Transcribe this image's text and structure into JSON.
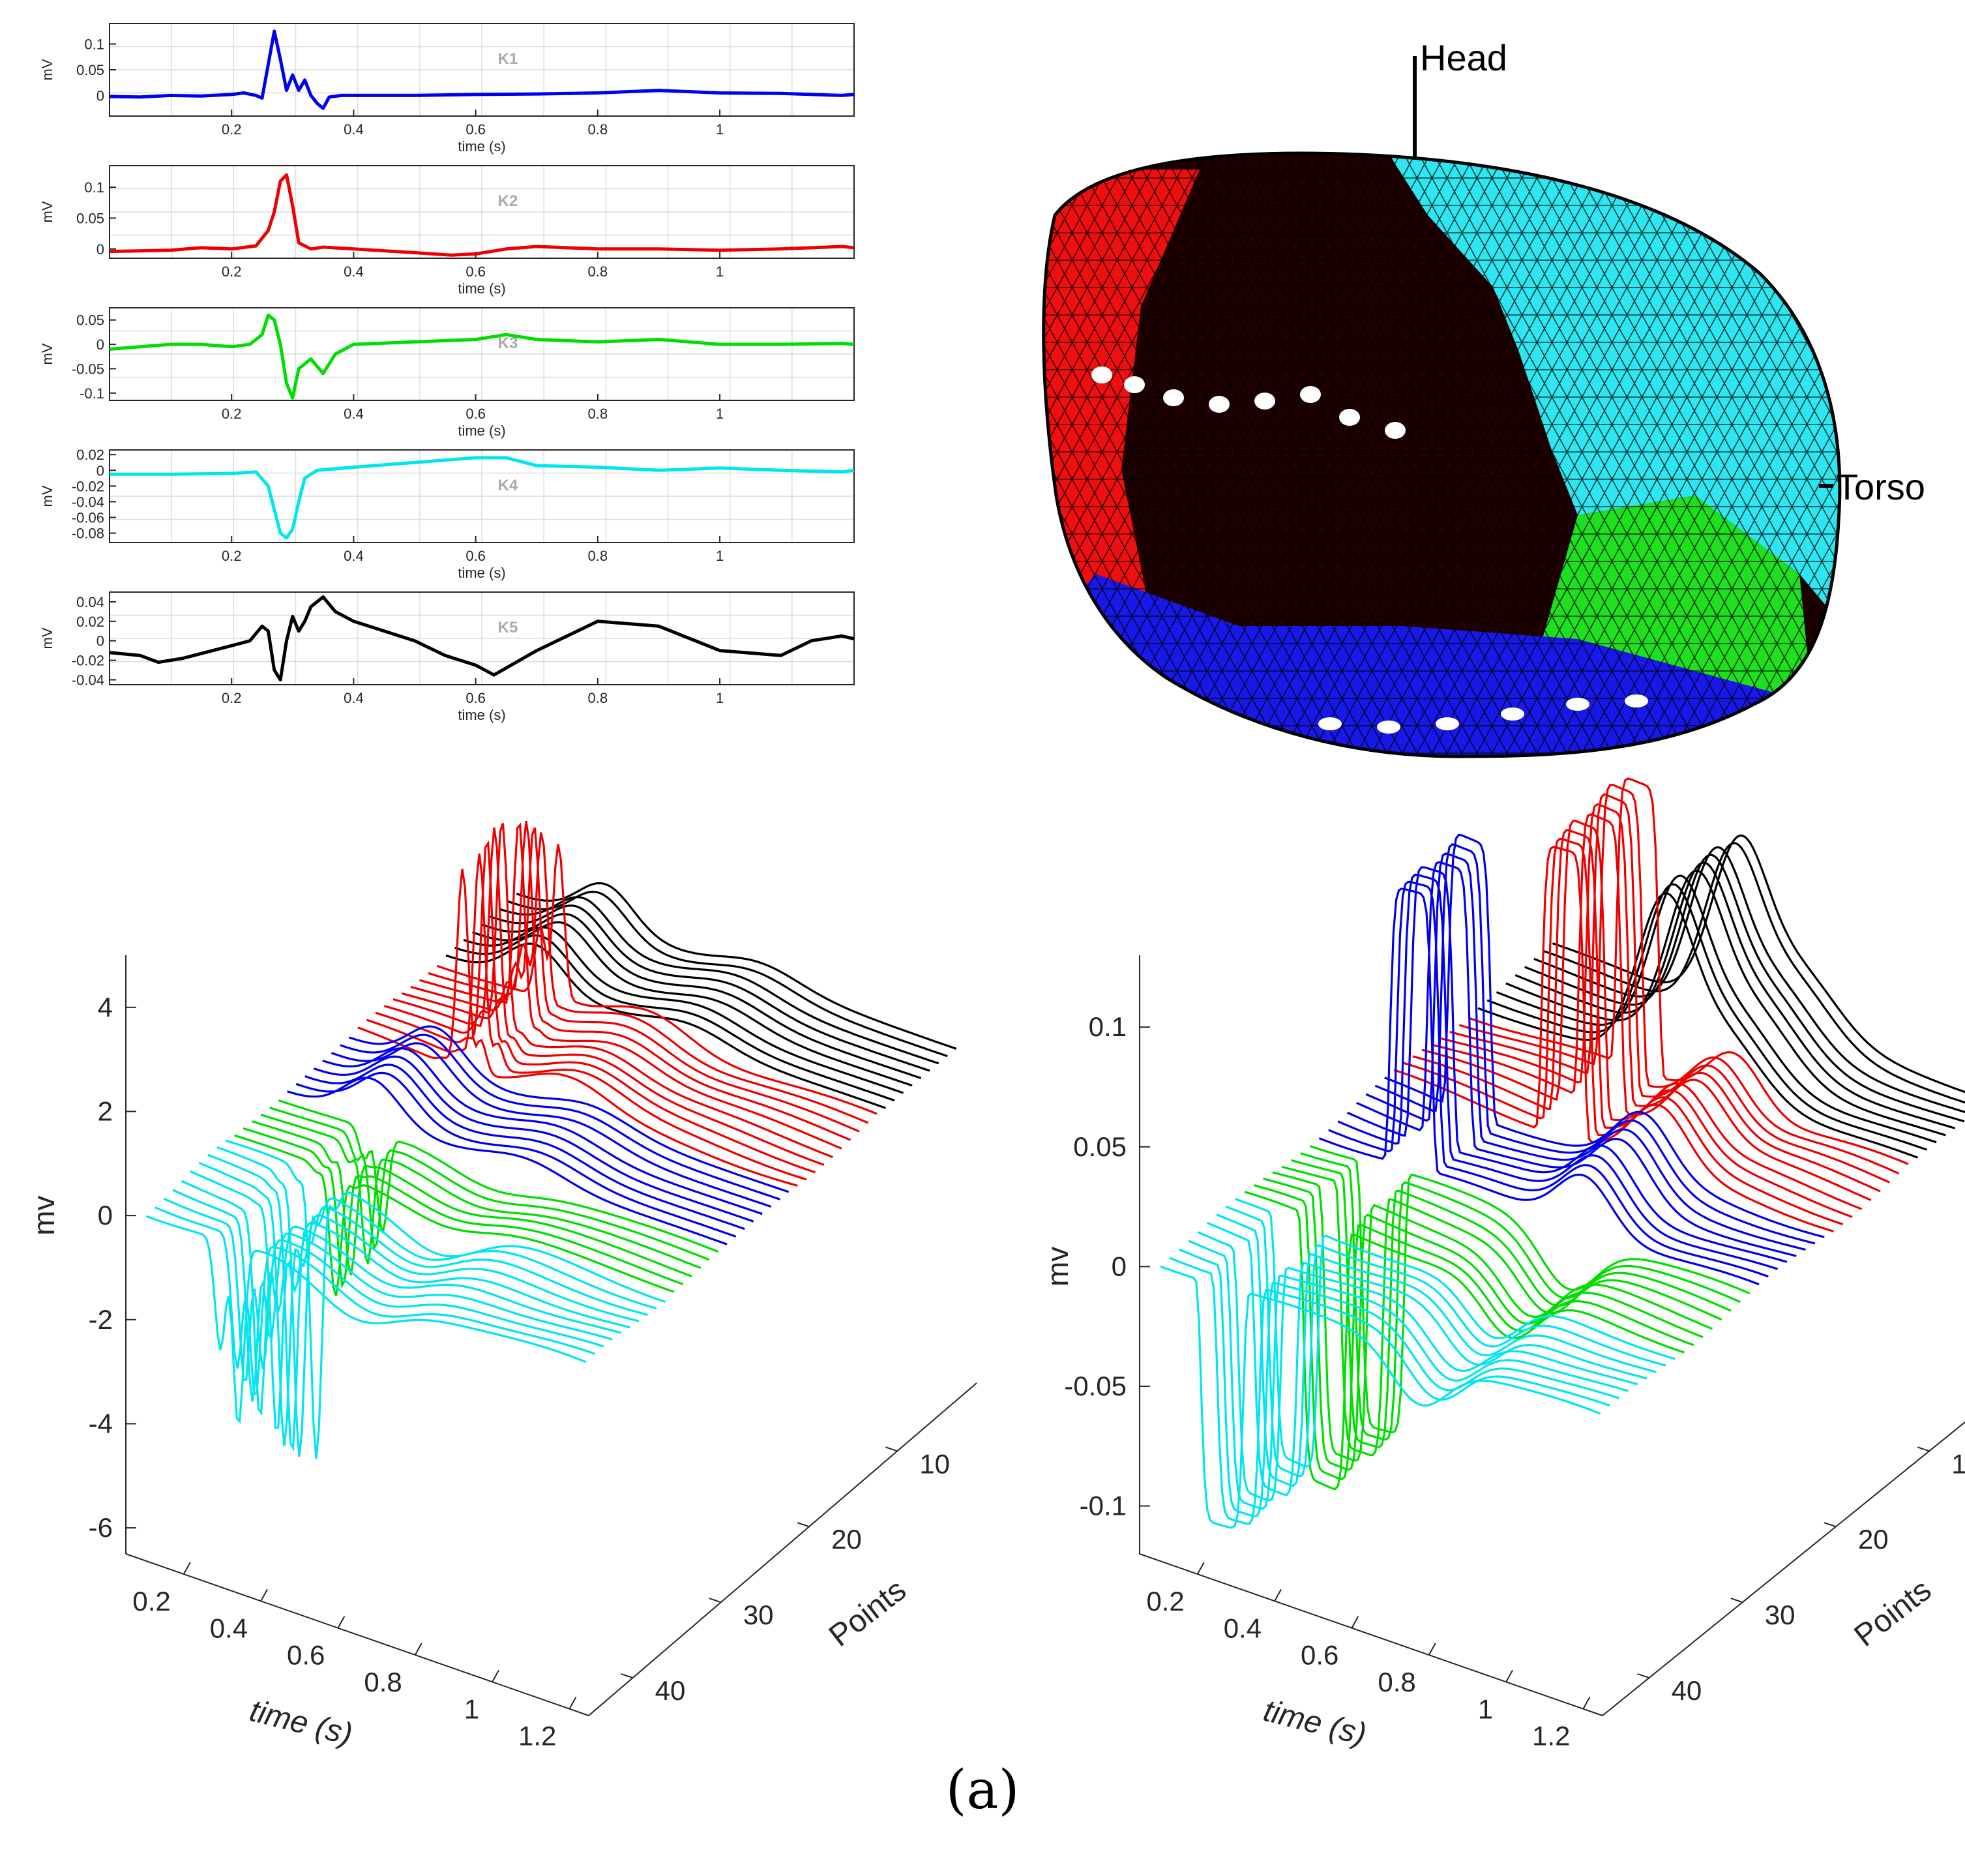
{
  "chart_data": [
    {
      "type": "line",
      "name": "K1",
      "title": "K1",
      "color": "#0000ee",
      "xlabel": "time (s)",
      "ylabel": "mV",
      "xlim": [
        0.0,
        1.22
      ],
      "ylim": [
        -0.04,
        0.14
      ],
      "xticks": [
        0.2,
        0.4,
        0.6,
        0.8,
        1.0
      ],
      "xtick_labels": [
        "0.2",
        "0.4",
        "0.6",
        "0.8",
        "1"
      ],
      "yticks": [
        0.1,
        0.05,
        0.0
      ],
      "ytick_labels": [
        "0.1",
        "0.05",
        "0"
      ],
      "grid": true,
      "x": [
        0,
        0.05,
        0.1,
        0.15,
        0.2,
        0.22,
        0.24,
        0.25,
        0.26,
        0.27,
        0.28,
        0.29,
        0.3,
        0.31,
        0.32,
        0.33,
        0.34,
        0.35,
        0.36,
        0.38,
        0.4,
        0.5,
        0.6,
        0.7,
        0.8,
        0.9,
        1.0,
        1.1,
        1.2,
        1.22
      ],
      "y": [
        -0.002,
        -0.003,
        0.0,
        -0.001,
        0.002,
        0.005,
        0.0,
        -0.005,
        0.06,
        0.125,
        0.07,
        0.01,
        0.04,
        0.01,
        0.03,
        0.0,
        -0.015,
        -0.025,
        -0.003,
        0.0,
        0.0,
        0.0,
        0.002,
        0.003,
        0.005,
        0.01,
        0.005,
        0.004,
        0.0,
        0.002
      ]
    },
    {
      "type": "line",
      "name": "K2",
      "title": "K2",
      "color": "#ee0000",
      "xlabel": "time (s)",
      "ylabel": "mV",
      "xlim": [
        0.0,
        1.22
      ],
      "ylim": [
        -0.015,
        0.135
      ],
      "xticks": [
        0.2,
        0.4,
        0.6,
        0.8,
        1.0
      ],
      "xtick_labels": [
        "0.2",
        "0.4",
        "0.6",
        "0.8",
        "1"
      ],
      "yticks": [
        0.1,
        0.05,
        0.0
      ],
      "ytick_labels": [
        "0.1",
        "0.05",
        "0"
      ],
      "grid": true,
      "x": [
        0,
        0.1,
        0.15,
        0.2,
        0.24,
        0.26,
        0.27,
        0.28,
        0.29,
        0.3,
        0.31,
        0.33,
        0.35,
        0.4,
        0.5,
        0.56,
        0.6,
        0.65,
        0.7,
        0.8,
        0.9,
        1.0,
        1.1,
        1.2,
        1.22
      ],
      "y": [
        -0.004,
        -0.002,
        0.002,
        0.0,
        0.005,
        0.03,
        0.06,
        0.11,
        0.12,
        0.07,
        0.01,
        0.0,
        0.003,
        0.0,
        -0.006,
        -0.01,
        -0.008,
        0.0,
        0.004,
        0.0,
        0.0,
        -0.002,
        0.0,
        0.004,
        0.002
      ]
    },
    {
      "type": "line",
      "name": "K3",
      "title": "K3",
      "color": "#00dd00",
      "xlabel": "time (s)",
      "ylabel": "mV",
      "xlim": [
        0.0,
        1.22
      ],
      "ylim": [
        -0.115,
        0.075
      ],
      "xticks": [
        0.2,
        0.4,
        0.6,
        0.8,
        1.0
      ],
      "xtick_labels": [
        "0.2",
        "0.4",
        "0.6",
        "0.8",
        "1"
      ],
      "yticks": [
        0.05,
        0.0,
        -0.05,
        -0.1
      ],
      "ytick_labels": [
        "0.05",
        "0",
        "-0.05",
        "-0.1"
      ],
      "grid": true,
      "x": [
        0,
        0.05,
        0.1,
        0.15,
        0.2,
        0.23,
        0.25,
        0.26,
        0.27,
        0.28,
        0.29,
        0.3,
        0.31,
        0.33,
        0.35,
        0.37,
        0.4,
        0.5,
        0.6,
        0.65,
        0.7,
        0.8,
        0.9,
        1.0,
        1.1,
        1.2,
        1.22
      ],
      "y": [
        -0.01,
        -0.005,
        0.0,
        0.0,
        -0.005,
        0.0,
        0.02,
        0.06,
        0.05,
        0.0,
        -0.08,
        -0.11,
        -0.05,
        -0.03,
        -0.06,
        -0.02,
        0.0,
        0.005,
        0.01,
        0.02,
        0.01,
        0.005,
        0.01,
        0.0,
        0.0,
        0.002,
        0.0
      ]
    },
    {
      "type": "line",
      "name": "K4",
      "title": "K4",
      "color": "#00e5ee",
      "xlabel": "time (s)",
      "ylabel": "mV",
      "xlim": [
        0.0,
        1.22
      ],
      "ylim": [
        -0.092,
        0.026
      ],
      "xticks": [
        0.2,
        0.4,
        0.6,
        0.8,
        1.0
      ],
      "xtick_labels": [
        "0.2",
        "0.4",
        "0.6",
        "0.8",
        "1"
      ],
      "yticks": [
        0.02,
        0.0,
        -0.02,
        -0.04,
        -0.06,
        -0.08
      ],
      "ytick_labels": [
        "0.02",
        "0",
        "-0.02",
        "-0.04",
        "-0.06",
        "-0.08"
      ],
      "grid": true,
      "x": [
        0,
        0.1,
        0.2,
        0.24,
        0.26,
        0.27,
        0.28,
        0.29,
        0.3,
        0.31,
        0.32,
        0.34,
        0.4,
        0.5,
        0.6,
        0.65,
        0.7,
        0.8,
        0.9,
        1.0,
        1.1,
        1.2,
        1.22
      ],
      "y": [
        -0.005,
        -0.005,
        -0.004,
        -0.002,
        -0.02,
        -0.05,
        -0.08,
        -0.086,
        -0.075,
        -0.04,
        -0.01,
        0.0,
        0.004,
        0.01,
        0.016,
        0.016,
        0.006,
        0.004,
        0.0,
        0.003,
        0.0,
        -0.002,
        0.0
      ]
    },
    {
      "type": "line",
      "name": "K5",
      "title": "K5",
      "color": "#000000",
      "xlabel": "time (s)",
      "ylabel": "mV",
      "xlim": [
        0.0,
        1.22
      ],
      "ylim": [
        -0.045,
        0.05
      ],
      "xticks": [
        0.2,
        0.4,
        0.6,
        0.8,
        1.0
      ],
      "xtick_labels": [
        "0.2",
        "0.4",
        "0.6",
        "0.8",
        "1"
      ],
      "yticks": [
        0.04,
        0.02,
        0.0,
        -0.02,
        -0.04
      ],
      "ytick_labels": [
        "0.04",
        "0.02",
        "0",
        "-0.02",
        "-0.04"
      ],
      "grid": true,
      "x": [
        0,
        0.05,
        0.08,
        0.12,
        0.2,
        0.23,
        0.25,
        0.26,
        0.27,
        0.28,
        0.29,
        0.3,
        0.31,
        0.32,
        0.33,
        0.35,
        0.37,
        0.4,
        0.45,
        0.5,
        0.55,
        0.6,
        0.63,
        0.7,
        0.8,
        0.9,
        1.0,
        1.1,
        1.15,
        1.2,
        1.22
      ],
      "y": [
        -0.012,
        -0.015,
        -0.022,
        -0.018,
        -0.005,
        0.0,
        0.015,
        0.01,
        -0.03,
        -0.04,
        0.0,
        0.025,
        0.01,
        0.02,
        0.035,
        0.045,
        0.03,
        0.02,
        0.01,
        0.0,
        -0.015,
        -0.025,
        -0.035,
        -0.01,
        0.02,
        0.015,
        -0.01,
        -0.015,
        0.0,
        0.005,
        0.002
      ]
    },
    {
      "type": "line3d",
      "name": "waterfall-left",
      "xlabel": "time (s)",
      "ylabel": "Points",
      "zlabel": "mv",
      "xlim": [
        0.05,
        1.25
      ],
      "ylim": [
        1,
        45
      ],
      "zlim": [
        -6.5,
        5.0
      ],
      "xticks": [
        0.2,
        0.4,
        0.6,
        0.8,
        1.0,
        1.2
      ],
      "xtick_labels": [
        "0.2",
        "0.4",
        "0.6",
        "0.8",
        "1",
        "1.2"
      ],
      "yticks": [
        10,
        20,
        30,
        40
      ],
      "ytick_labels": [
        "10",
        "20",
        "30",
        "40"
      ],
      "zticks": [
        4,
        2,
        0,
        -2,
        -4,
        -6
      ],
      "ztick_labels": [
        "4",
        "2",
        "0",
        "-2",
        "-4",
        "-6"
      ],
      "groups": [
        {
          "name": "black",
          "color": "#000000",
          "points": [
            2,
            10
          ],
          "event_t": 0.3,
          "amp": 0.8,
          "wave": "bump"
        },
        {
          "name": "red",
          "color": "#ee0000",
          "points": [
            11,
            20
          ],
          "event_t": 0.36,
          "amp": 4.2,
          "wave": "spike"
        },
        {
          "name": "blue",
          "color": "#0000ee",
          "points": [
            21,
            28
          ],
          "event_t": 0.3,
          "amp": 0.8,
          "wave": "bump"
        },
        {
          "name": "green",
          "color": "#00dd00",
          "points": [
            29,
            34
          ],
          "event_t": 0.33,
          "amp": -2.4,
          "wave": "spike"
        },
        {
          "name": "cyan",
          "color": "#00e5ee",
          "points": [
            35,
            44
          ],
          "event_t": 0.3,
          "amp": -5.5,
          "wave": "spike"
        }
      ]
    },
    {
      "type": "line3d",
      "name": "waterfall-right",
      "xlabel": "time (s)",
      "ylabel": "Points",
      "zlabel": "mv",
      "xlim": [
        0.05,
        1.25
      ],
      "ylim": [
        1,
        45
      ],
      "zlim": [
        -0.12,
        0.13
      ],
      "xticks": [
        0.2,
        0.4,
        0.6,
        0.8,
        1.0,
        1.2
      ],
      "xtick_labels": [
        "0.2",
        "0.4",
        "0.6",
        "0.8",
        "1",
        "1.2"
      ],
      "yticks": [
        10,
        20,
        30,
        40
      ],
      "ytick_labels": [
        "10",
        "20",
        "30",
        "40"
      ],
      "zticks": [
        0.1,
        0.05,
        0.0,
        -0.05,
        -0.1
      ],
      "ztick_labels": [
        "0.1",
        "0.05",
        "0",
        "-0.05",
        "-0.1"
      ],
      "groups": [
        {
          "name": "black",
          "color": "#000000",
          "points": [
            2,
            10
          ],
          "event_t": 0.55,
          "amp": 0.065,
          "wave": "bump"
        },
        {
          "name": "red",
          "color": "#ee0000",
          "points": [
            11,
            19
          ],
          "event_t": 0.5,
          "amp": 0.12,
          "wave": "pulse"
        },
        {
          "name": "blue",
          "color": "#0000ee",
          "points": [
            20,
            27
          ],
          "event_t": 0.3,
          "amp": 0.115,
          "wave": "pulse"
        },
        {
          "name": "green",
          "color": "#00dd00",
          "points": [
            28,
            35
          ],
          "event_t": 0.27,
          "amp": -0.11,
          "wave": "pulse"
        },
        {
          "name": "cyan",
          "color": "#00e5ee",
          "points": [
            36,
            44
          ],
          "event_t": 0.24,
          "amp": -0.1,
          "wave": "pulse"
        }
      ]
    }
  ],
  "mesh_labels": {
    "head": "Head",
    "torso": "Torso"
  },
  "caption": "(a)"
}
